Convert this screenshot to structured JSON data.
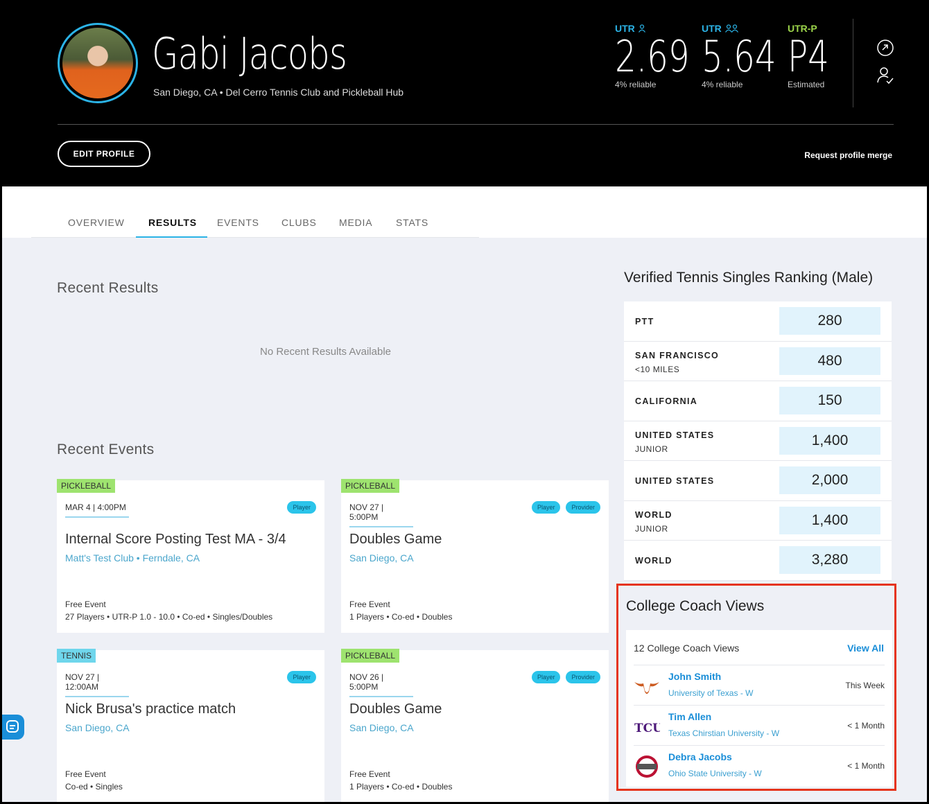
{
  "profile": {
    "name": "Gabi Jacobs",
    "location": "San Diego, CA • Del Cerro Tennis Club and Pickleball Hub",
    "ratings": [
      {
        "label": "UTR",
        "value": "2.69",
        "sub": "4% reliable",
        "icon": "person-icon"
      },
      {
        "label": "UTR",
        "value": "5.64",
        "sub": "4% reliable",
        "icon": "two-persons-icon"
      },
      {
        "label": "UTR-P",
        "value": "P4",
        "sub": "Estimated",
        "icon": ""
      }
    ],
    "edit_label": "EDIT PROFILE",
    "merge_label": "Request profile merge"
  },
  "tabs": [
    "OVERVIEW",
    "RESULTS",
    "EVENTS",
    "CLUBS",
    "MEDIA",
    "STATS"
  ],
  "active_tab": "RESULTS",
  "results": {
    "title": "Recent Results",
    "empty": "No Recent Results Available"
  },
  "events": {
    "title": "Recent Events",
    "cards": [
      {
        "sport": "PICKLEBALL",
        "date": "MAR 4 | 4:00PM",
        "badges": [
          "Player"
        ],
        "title": "Internal Score Posting Test MA - 3/4",
        "place": "Matt's Test Club • Ferndale, CA",
        "fee": "Free Event",
        "info": "27 Players • UTR-P 1.0 - 10.0 • Co-ed • Singles/Doubles"
      },
      {
        "sport": "PICKLEBALL",
        "date": "NOV 27 | 5:00PM",
        "badges": [
          "Player",
          "Provider"
        ],
        "title": "Doubles Game",
        "place": "San Diego, CA",
        "fee": "Free Event",
        "info": "1 Players • Co-ed • Doubles"
      },
      {
        "sport": "TENNIS",
        "date": "NOV 27 | 12:00AM",
        "badges": [
          "Player"
        ],
        "title": "Nick Brusa's practice match",
        "place": "San Diego, CA",
        "fee": "Free Event",
        "info": "Co-ed • Singles"
      },
      {
        "sport": "PICKLEBALL",
        "date": "NOV 26 | 5:00PM",
        "badges": [
          "Player",
          "Provider"
        ],
        "title": "Doubles Game",
        "place": "San Diego, CA",
        "fee": "Free Event",
        "info": "1 Players • Co-ed • Doubles"
      }
    ]
  },
  "ranking": {
    "title": "Verified Tennis Singles Ranking (Male)",
    "rows": [
      {
        "label": "PTT",
        "sub": "",
        "value": "280"
      },
      {
        "label": "SAN FRANCISCO",
        "sub": "<10 MILES",
        "value": "480"
      },
      {
        "label": "CALIFORNIA",
        "sub": "",
        "value": "150"
      },
      {
        "label": "UNITED STATES",
        "sub": "JUNIOR",
        "value": "1,400"
      },
      {
        "label": "UNITED STATES",
        "sub": "",
        "value": "2,000"
      },
      {
        "label": "WORLD",
        "sub": "JUNIOR",
        "value": "1,400"
      },
      {
        "label": "WORLD",
        "sub": "",
        "value": "3,280"
      }
    ]
  },
  "coach_views": {
    "title": "College Coach Views",
    "count": "12 College Coach Views",
    "view_all": "View All",
    "rows": [
      {
        "name": "John Smith",
        "school": "University of Texas - W",
        "when": "This Week",
        "logo": "longhorn-logo"
      },
      {
        "name": "Tim Allen",
        "school": "Texas Chirstian University - W",
        "when": "< 1 Month",
        "logo": "tcu-logo"
      },
      {
        "name": "Debra Jacobs",
        "school": "Ohio State University - W",
        "when": "< 1 Month",
        "logo": "ohio-state-logo"
      }
    ]
  },
  "colors": {
    "accent": "#2bb3e6",
    "pickleball": "#9ee36f",
    "tennis": "#6fd6ec",
    "highlight": "#e5341b",
    "link": "#1a8ed8"
  }
}
